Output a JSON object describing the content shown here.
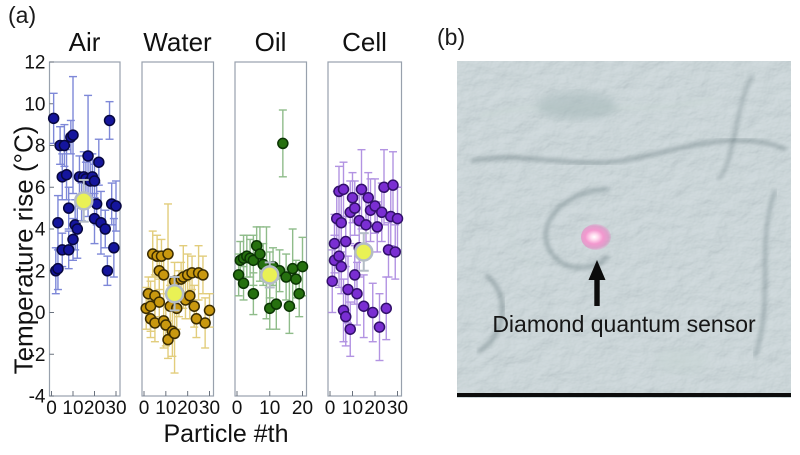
{
  "panel_a": {
    "label": "(a)"
  },
  "panel_b": {
    "label": "(b)",
    "annotation": "Diamond quantum sensor"
  },
  "chart_data": {
    "type": "scatter",
    "xlabel": "Particle #th",
    "ylabel": "Temperature rise (°C)",
    "ylim": [
      -4,
      12
    ],
    "y_ticks": [
      12,
      10,
      8,
      6,
      4,
      2,
      0,
      -2,
      -4
    ],
    "grid": false,
    "frame_color": "#98a1ad",
    "mean_fill": "#e9f155",
    "mean_edge": "#b4bcc6",
    "panels": [
      {
        "title": "Air",
        "color": "#15159d",
        "edge_color": "#07073f",
        "errorbar_color": "#7e88d8",
        "x_ticks": [
          0,
          10,
          20,
          30
        ],
        "mean": {
          "x": 15,
          "y": 5.35,
          "e": 1.0
        },
        "points": [
          [
            1,
            9.3,
            1.2
          ],
          [
            2,
            2.0,
            1.1
          ],
          [
            3,
            4.3,
            1.3
          ],
          [
            3,
            2.1,
            1.0
          ],
          [
            4,
            8.0,
            0.9
          ],
          [
            5,
            6.5,
            1.1
          ],
          [
            5,
            3.0,
            0.8
          ],
          [
            6,
            8.0,
            1.0
          ],
          [
            7,
            6.6,
            1.2
          ],
          [
            8,
            5.0,
            1.0
          ],
          [
            8,
            3.0,
            0.9
          ],
          [
            9,
            8.4,
            0.8
          ],
          [
            10,
            8.5,
            2.8
          ],
          [
            10,
            3.5,
            1.0
          ],
          [
            11,
            4.2,
            1.2
          ],
          [
            12,
            4.0,
            1.4
          ],
          [
            13,
            6.5,
            1.0
          ],
          [
            14,
            5.3,
            0.9
          ],
          [
            15,
            6.5,
            1.2
          ],
          [
            16,
            6.4,
            0.8
          ],
          [
            17,
            7.5,
            2.9
          ],
          [
            18,
            6.3,
            1.0
          ],
          [
            19,
            6.5,
            1.1
          ],
          [
            20,
            6.3,
            0.8
          ],
          [
            20,
            4.5,
            1.2
          ],
          [
            21,
            5.2,
            1.0
          ],
          [
            22,
            7.2,
            1.1
          ],
          [
            23,
            4.3,
            1.5
          ],
          [
            25,
            4.0,
            0.9
          ],
          [
            26,
            2.0,
            0.7
          ],
          [
            27,
            9.2,
            0.9
          ],
          [
            28,
            5.2,
            1.0
          ],
          [
            29,
            3.1,
            1.4
          ],
          [
            30,
            5.1,
            1.2
          ]
        ]
      },
      {
        "title": "Water",
        "color": "#c9980f",
        "edge_color": "#3a2c02",
        "errorbar_color": "#e2cd7c",
        "x_ticks": [
          0,
          10,
          20,
          30
        ],
        "mean": {
          "x": 14,
          "y": 0.9,
          "e": 0.8
        },
        "points": [
          [
            1,
            0.2,
            1.0
          ],
          [
            2,
            0.9,
            0.8
          ],
          [
            3,
            -0.3,
            0.9
          ],
          [
            3,
            0.3,
            1.2
          ],
          [
            4,
            2.8,
            1.1
          ],
          [
            5,
            0.8,
            1.0
          ],
          [
            5,
            -0.5,
            0.9
          ],
          [
            6,
            2.7,
            1.0
          ],
          [
            7,
            2.0,
            0.9
          ],
          [
            7,
            0.5,
            1.1
          ],
          [
            8,
            2.7,
            0.8
          ],
          [
            9,
            -0.4,
            1.3
          ],
          [
            9,
            1.8,
            0.9
          ],
          [
            10,
            -0.6,
            1.0
          ],
          [
            11,
            2.8,
            2.4
          ],
          [
            11,
            -1.3,
            0.9
          ],
          [
            12,
            0.3,
            1.0
          ],
          [
            13,
            -0.9,
            1.2
          ],
          [
            14,
            -1.0,
            1.9
          ],
          [
            14,
            1.5,
            0.9
          ],
          [
            15,
            0.2,
            1.0
          ],
          [
            16,
            0.9,
            1.1
          ],
          [
            17,
            1.6,
            0.8
          ],
          [
            18,
            1.7,
            1.5
          ],
          [
            19,
            0.6,
            0.9
          ],
          [
            20,
            1.8,
            1.0
          ],
          [
            21,
            0.8,
            1.1
          ],
          [
            22,
            1.9,
            0.8
          ],
          [
            23,
            0.3,
            1.0
          ],
          [
            24,
            -0.3,
            0.9
          ],
          [
            25,
            1.9,
            1.3
          ],
          [
            27,
            1.8,
            0.9
          ],
          [
            28,
            -0.5,
            1.2
          ],
          [
            30,
            0.1,
            0.8
          ]
        ]
      },
      {
        "title": "Oil",
        "color": "#26700f",
        "edge_color": "#0b3504",
        "errorbar_color": "#8fbc8a",
        "x_ticks": [
          0,
          10,
          20
        ],
        "mean": {
          "x": 10,
          "y": 1.8,
          "e": 0.6
        },
        "points": [
          [
            0.5,
            1.8,
            1.0
          ],
          [
            1,
            2.5,
            0.9
          ],
          [
            2,
            2.6,
            1.1
          ],
          [
            2,
            1.4,
            0.8
          ],
          [
            3,
            2.7,
            1.0
          ],
          [
            4,
            2.6,
            0.9
          ],
          [
            5,
            2.5,
            1.2
          ],
          [
            5,
            0.9,
            1.0
          ],
          [
            6,
            3.2,
            0.9
          ],
          [
            7,
            2.8,
            1.3
          ],
          [
            8,
            2.3,
            1.0
          ],
          [
            9,
            1.9,
            2.2
          ],
          [
            10,
            1.8,
            1.1
          ],
          [
            10,
            0.2,
            1.0
          ],
          [
            11,
            2.2,
            0.9
          ],
          [
            12,
            0.4,
            1.2
          ],
          [
            13,
            2.0,
            1.0
          ],
          [
            14,
            8.1,
            1.6
          ],
          [
            15,
            1.7,
            1.1
          ],
          [
            16,
            0.3,
            1.3
          ],
          [
            17,
            2.1,
            1.9
          ],
          [
            18,
            1.6,
            0.9
          ],
          [
            19,
            0.9,
            1.1
          ],
          [
            20,
            2.2,
            1.4
          ]
        ]
      },
      {
        "title": "Cell",
        "color": "#7a2ed2",
        "edge_color": "#32106b",
        "errorbar_color": "#b293e2",
        "x_ticks": [
          0,
          10,
          20,
          30
        ],
        "mean": {
          "x": 15,
          "y": 2.9,
          "e": 0.9
        },
        "points": [
          [
            1,
            1.5,
            1.5
          ],
          [
            2,
            3.3,
            1.4
          ],
          [
            2,
            2.5,
            1.2
          ],
          [
            3,
            4.5,
            1.3
          ],
          [
            4,
            2.7,
            1.5
          ],
          [
            4,
            5.8,
            1.2
          ],
          [
            5,
            4.3,
            1.4
          ],
          [
            5,
            2.2,
            1.3
          ],
          [
            6,
            0.1,
            1.5
          ],
          [
            6,
            5.9,
            1.3
          ],
          [
            7,
            -0.2,
            1.4
          ],
          [
            7,
            3.4,
            1.2
          ],
          [
            8,
            1.1,
            1.6
          ],
          [
            9,
            -0.8,
            1.3
          ],
          [
            9,
            4.8,
            1.5
          ],
          [
            10,
            5.5,
            1.2
          ],
          [
            11,
            1.8,
            1.4
          ],
          [
            11,
            5.0,
            1.3
          ],
          [
            12,
            0.9,
            1.5
          ],
          [
            13,
            4.4,
            1.2
          ],
          [
            13,
            3.1,
            1.4
          ],
          [
            14,
            5.9,
            1.9
          ],
          [
            15,
            0.3,
            1.5
          ],
          [
            16,
            4.2,
            1.3
          ],
          [
            17,
            5.5,
            1.2
          ],
          [
            18,
            4.9,
            1.5
          ],
          [
            19,
            0.0,
            1.4
          ],
          [
            20,
            5.1,
            1.3
          ],
          [
            21,
            4.1,
            1.2
          ],
          [
            22,
            -0.7,
            1.6
          ],
          [
            23,
            4.8,
            1.4
          ],
          [
            24,
            6.0,
            1.8
          ],
          [
            25,
            0.2,
            1.5
          ],
          [
            26,
            3.0,
            1.3
          ],
          [
            27,
            4.6,
            1.4
          ],
          [
            28,
            6.1,
            1.6
          ],
          [
            29,
            2.9,
            1.3
          ],
          [
            30,
            4.5,
            1.5
          ]
        ]
      }
    ]
  }
}
